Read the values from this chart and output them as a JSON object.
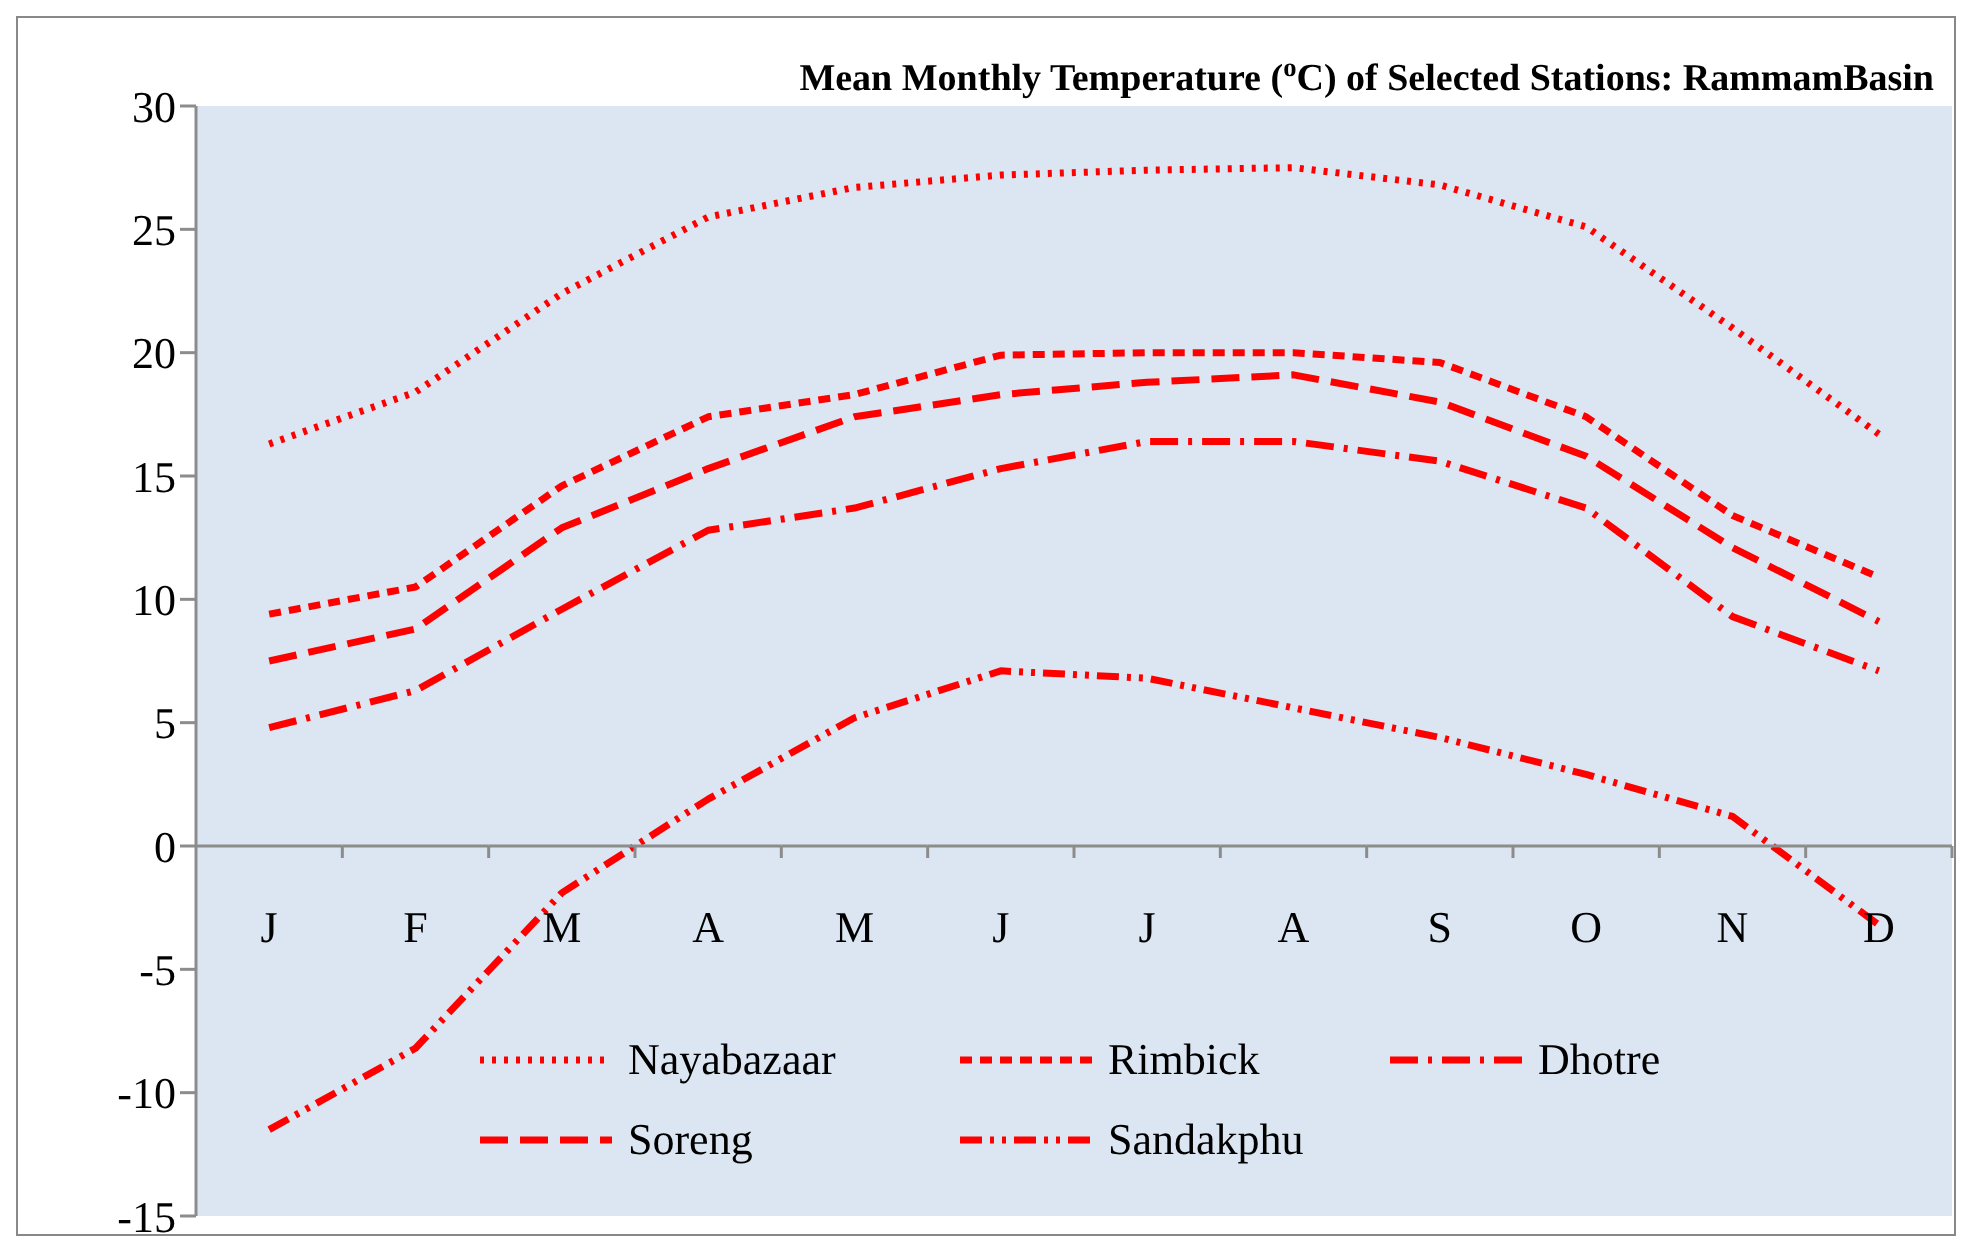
{
  "chart_data": {
    "type": "line",
    "title": "Mean Monthly Temperature ($^{o}$C) of Selected Stations: RammamBasin",
    "categories": [
      "J",
      "F",
      "M",
      "A",
      "M",
      "J",
      "J",
      "A",
      "S",
      "O",
      "N",
      "D"
    ],
    "series": [
      {
        "name": "Nayabazaar",
        "color": "#ff0000",
        "line_style": "dotted",
        "values": [
          16.3,
          18.4,
          22.4,
          25.5,
          26.7,
          27.2,
          27.4,
          27.5,
          26.8,
          25.1,
          21.0,
          16.7
        ]
      },
      {
        "name": "Rimbick",
        "color": "#ff0000",
        "line_style": "dashed",
        "values": [
          9.4,
          10.5,
          14.6,
          17.4,
          18.3,
          19.9,
          20.0,
          20.0,
          19.6,
          17.4,
          13.4,
          10.9
        ]
      },
      {
        "name": "Dhotre",
        "color": "#ff0000",
        "line_style": "dashed",
        "values": [
          4.8,
          6.3,
          9.6,
          12.8,
          13.7,
          15.3,
          16.4,
          16.4,
          15.6,
          13.7,
          9.3,
          7.1
        ]
      },
      {
        "name": "Soreng",
        "color": "#ff0000",
        "line_style": "dashed",
        "values": [
          7.5,
          8.8,
          12.9,
          15.3,
          17.4,
          18.3,
          18.8,
          19.1,
          18.0,
          15.8,
          12.1,
          9.1
        ]
      },
      {
        "name": "Sandakphu",
        "color": "#ff0000",
        "line_style": "dashed",
        "values": [
          -11.5,
          -8.2,
          -1.9,
          1.9,
          5.2,
          7.1,
          6.8,
          5.6,
          4.4,
          2.9,
          1.2,
          -3.2
        ]
      }
    ],
    "ylim": [
      -15,
      30
    ],
    "yticks": [
      -15,
      -10,
      -5,
      0,
      5,
      10,
      15,
      20,
      25,
      30
    ],
    "grid": false,
    "legend": "bottom",
    "marker": "none"
  }
}
